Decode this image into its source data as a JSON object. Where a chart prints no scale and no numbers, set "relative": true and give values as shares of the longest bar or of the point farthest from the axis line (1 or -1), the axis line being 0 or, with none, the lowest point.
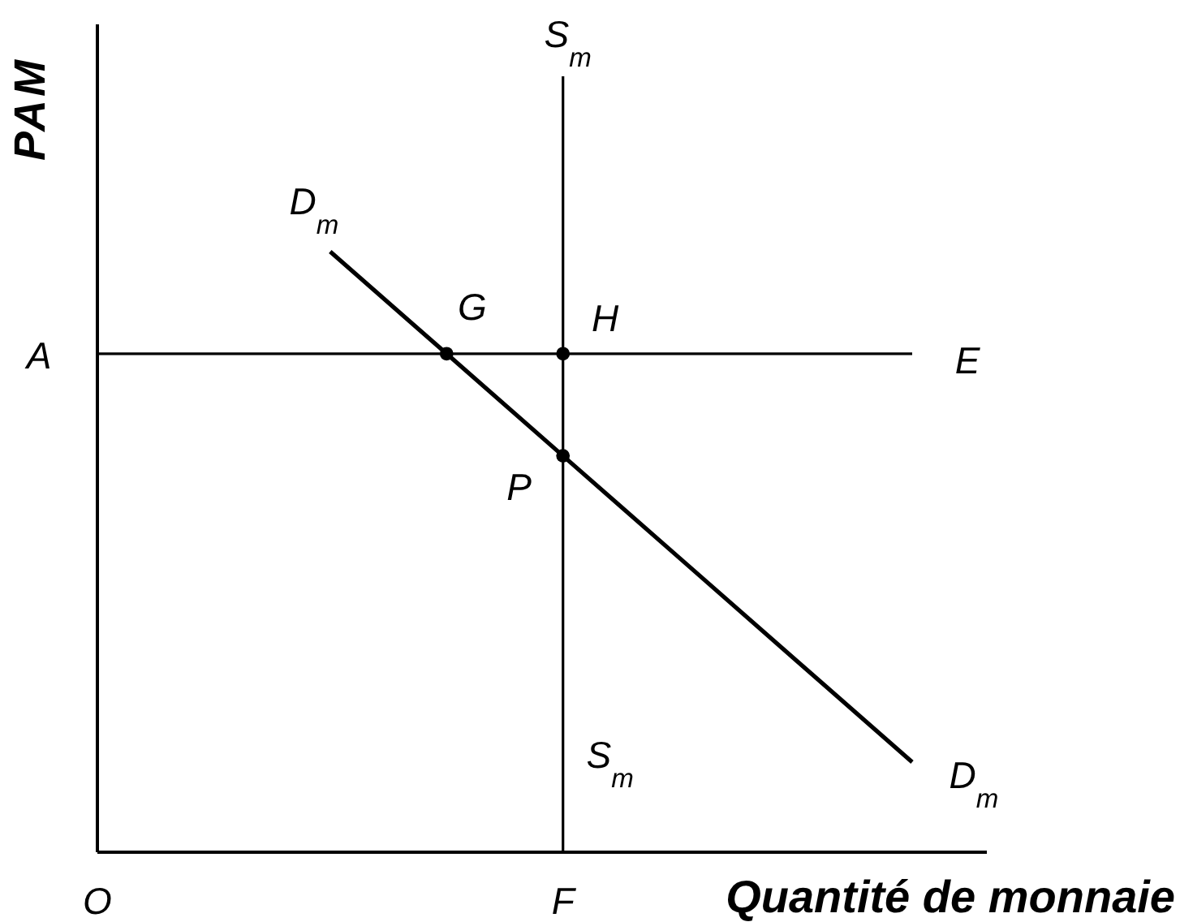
{
  "chart_data": {
    "type": "line",
    "relative": true,
    "xlabel": "Quantité de monnaie",
    "ylabel": "PAM",
    "categories": [
      "O",
      null,
      null,
      null,
      "F",
      null,
      null,
      null
    ],
    "series": [
      {
        "color": "#000000",
        "values": [
          0.83,
          0.83,
          0.83,
          0.83,
          0.83,
          0.83,
          0.83,
          0.83
        ]
      },
      {
        "name": "D$_{m}$",
        "color": "#000000",
        "values": [
          null,
          null,
          1,
          0.83,
          0.66,
          0.49,
          0.32,
          0.15
        ]
      },
      {
        "type": "scatter",
        "color": "#000000",
        "marker": "circle",
        "values": [
          null,
          null,
          null,
          0.83,
          0.83,
          null,
          null,
          null
        ]
      },
      {
        "type": "scatter",
        "color": "#000000",
        "marker": "circle",
        "values": [
          null,
          null,
          null,
          null,
          0.66,
          null,
          null,
          null
        ]
      }
    ],
    "ref_lines": [
      {
        "axis": "x",
        "value": "F",
        "label": "S$_{m}$",
        "color": "#000000"
      }
    ],
    "annotations": [
      "A",
      "E",
      {
        "text": "G",
        "y": 0.83
      },
      {
        "text": "H",
        "x": "F",
        "y": 0.83
      },
      {
        "text": "P",
        "x": "F",
        "y": 0.66
      }
    ]
  }
}
